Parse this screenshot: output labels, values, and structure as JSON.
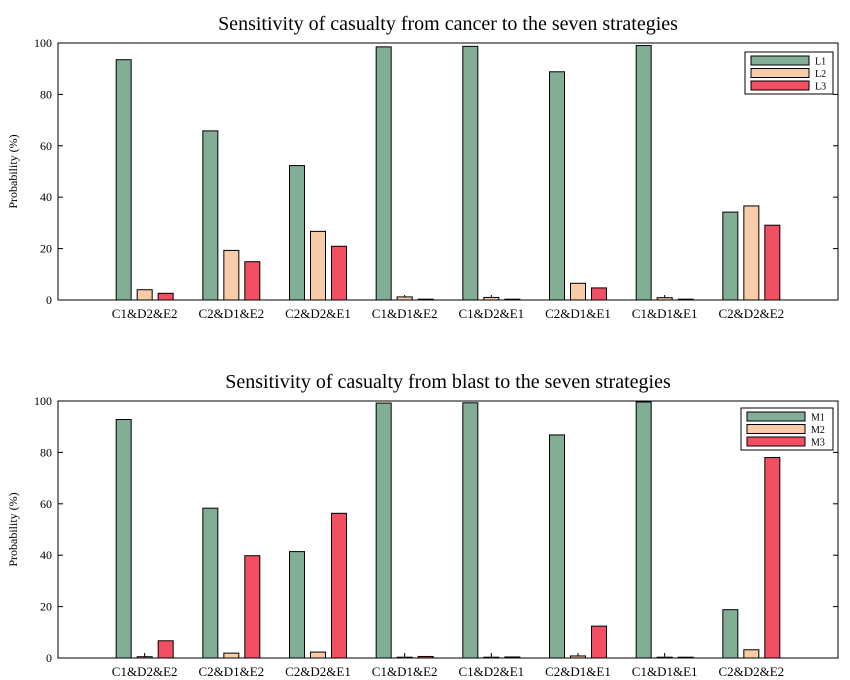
{
  "chart_data": [
    {
      "type": "bar",
      "title": "Sensitivity of casualty from cancer to the seven strategies",
      "xlabel": "",
      "ylabel": "Probability (%)",
      "ylim": [
        0,
        100
      ],
      "yticks": [
        0,
        20,
        40,
        60,
        80,
        100
      ],
      "grid": false,
      "legend_position": "top-right",
      "categories": [
        "C1&D2&E2",
        "C2&D1&E2",
        "C2&D2&E1",
        "C1&D1&E2",
        "C1&D2&E1",
        "C2&D1&E1",
        "C1&D1&E1",
        "C2&D2&E2"
      ],
      "series": [
        {
          "name": "L1",
          "color": "#82ae96",
          "values": [
            93.5,
            65.8,
            52.3,
            98.5,
            98.7,
            88.8,
            99.0,
            34.2
          ]
        },
        {
          "name": "L2",
          "color": "#f9cca8",
          "values": [
            4.0,
            19.3,
            26.7,
            1.2,
            1.0,
            6.5,
            0.9,
            36.6
          ]
        },
        {
          "name": "L3",
          "color": "#f24f62",
          "values": [
            2.6,
            14.9,
            20.9,
            0.3,
            0.3,
            4.7,
            0.2,
            29.1
          ]
        }
      ]
    },
    {
      "type": "bar",
      "title": "Sensitivity of casualty from blast to the seven strategies",
      "xlabel": "",
      "ylabel": "Probability (%)",
      "ylim": [
        0,
        100
      ],
      "yticks": [
        0,
        20,
        40,
        60,
        80,
        100
      ],
      "grid": false,
      "legend_position": "top-right",
      "categories": [
        "C1&D2&E2",
        "C2&D1&E2",
        "C2&D2&E1",
        "C1&D1&E2",
        "C1&D2&E1",
        "C2&D1&E1",
        "C1&D1&E1",
        "C2&D2&E2"
      ],
      "series": [
        {
          "name": "M1",
          "color": "#82ae96",
          "values": [
            92.8,
            58.3,
            41.4,
            99.2,
            99.3,
            86.8,
            99.6,
            18.8
          ]
        },
        {
          "name": "M2",
          "color": "#f9cca8",
          "values": [
            0.5,
            1.9,
            2.3,
            0.2,
            0.3,
            0.8,
            0.2,
            3.2
          ]
        },
        {
          "name": "M3",
          "color": "#f24f62",
          "values": [
            6.7,
            39.8,
            56.3,
            0.6,
            0.4,
            12.4,
            0.2,
            78.0
          ]
        }
      ]
    }
  ]
}
